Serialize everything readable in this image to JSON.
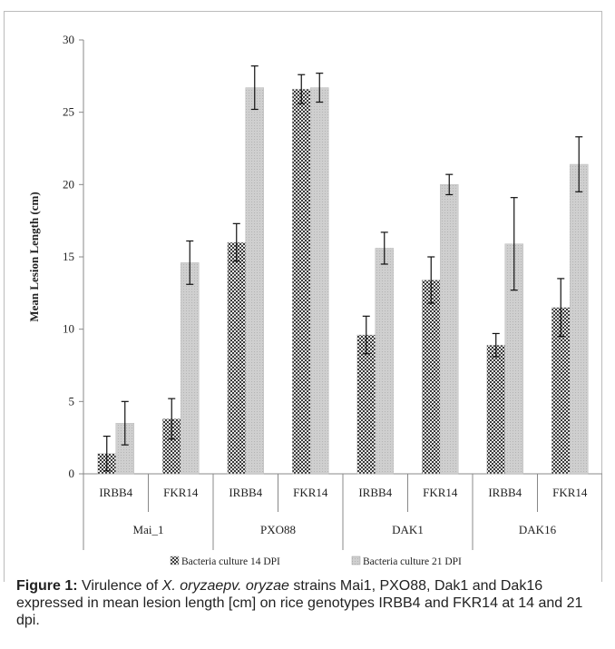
{
  "chart_data": {
    "type": "bar",
    "ylabel": "Mean Lesion Length (cm)",
    "ylim": [
      0,
      30
    ],
    "yticks": [
      0,
      5,
      10,
      15,
      20,
      25,
      30
    ],
    "legend_position": "bottom",
    "groups": [
      {
        "label": "Mai_1",
        "categories": [
          "IRBB4",
          "FKR14"
        ]
      },
      {
        "label": "PXO88",
        "categories": [
          "IRBB4",
          "FKR14"
        ]
      },
      {
        "label": "DAK1",
        "categories": [
          "IRBB4",
          "FKR14"
        ]
      },
      {
        "label": "DAK16",
        "categories": [
          "IRBB4",
          "FKR14"
        ]
      }
    ],
    "series": [
      {
        "name": "Bacteria culture 14 DPI",
        "color": "#3a3a3a",
        "values": [
          1.4,
          3.8,
          16.0,
          26.6,
          9.6,
          13.4,
          8.9,
          11.5
        ],
        "errors": [
          1.2,
          1.4,
          1.3,
          1.0,
          1.3,
          1.6,
          0.8,
          2.0
        ]
      },
      {
        "name": "Bacteria culture 21 DPI",
        "color": "#c8c8c8",
        "values": [
          3.5,
          14.6,
          26.7,
          26.7,
          15.6,
          20.0,
          15.9,
          21.4
        ],
        "errors": [
          1.5,
          1.5,
          1.5,
          1.0,
          1.1,
          0.7,
          3.2,
          1.9
        ]
      }
    ]
  },
  "caption": {
    "label": "Figure 1:",
    "text_1": " Virulence of ",
    "species_1": "X. oryzaepv. oryzae",
    "text_2": " strains Mai1, PXO88, Dak1 and Dak16 expressed in mean lesion length [cm] on rice genotypes IRBB4 and FKR14 at 14 and 21 dpi."
  },
  "colors": {
    "frame": "#bbbbbb",
    "axis": "#888888",
    "text": "#222222"
  }
}
